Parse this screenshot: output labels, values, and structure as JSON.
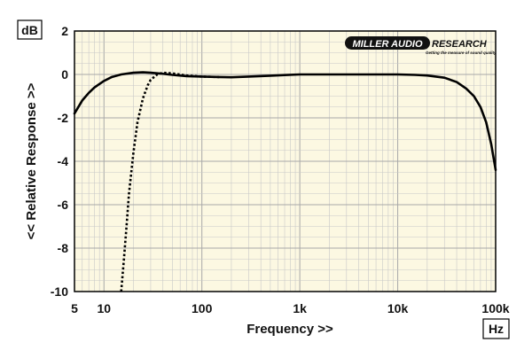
{
  "chart_data": {
    "type": "line",
    "title": "",
    "xlabel": "Frequency >>",
    "ylabel": "<< Relative Response >>",
    "y_unit": "dB",
    "x_unit": "Hz",
    "x_scale": "log",
    "xlim": [
      5,
      100000
    ],
    "ylim": [
      -10,
      2
    ],
    "x_ticks": [
      5,
      10,
      100,
      1000,
      10000,
      100000
    ],
    "x_tick_labels": [
      "5",
      "10",
      "100",
      "1k",
      "10k",
      "100k"
    ],
    "y_ticks": [
      2,
      0,
      -2,
      -4,
      -6,
      -8,
      -10
    ],
    "y_tick_labels": [
      "2",
      "0",
      "-2",
      "-4",
      "-6",
      "-8",
      "-10"
    ],
    "grid": true,
    "background_color": "#fcf8e2",
    "grid_color": "#c8c8c8",
    "series": [
      {
        "style": "solid",
        "color": "#000000",
        "points": [
          [
            5,
            -1.8
          ],
          [
            6,
            -1.2
          ],
          [
            7,
            -0.85
          ],
          [
            8,
            -0.6
          ],
          [
            10,
            -0.3
          ],
          [
            12,
            -0.12
          ],
          [
            15,
            0.0
          ],
          [
            20,
            0.08
          ],
          [
            25,
            0.1
          ],
          [
            30,
            0.08
          ],
          [
            40,
            0.03
          ],
          [
            50,
            -0.02
          ],
          [
            70,
            -0.08
          ],
          [
            100,
            -0.1
          ],
          [
            150,
            -0.12
          ],
          [
            200,
            -0.13
          ],
          [
            300,
            -0.1
          ],
          [
            500,
            -0.06
          ],
          [
            700,
            -0.03
          ],
          [
            1000,
            0.0
          ],
          [
            2000,
            0.0
          ],
          [
            5000,
            0.0
          ],
          [
            10000,
            0.0
          ],
          [
            15000,
            -0.02
          ],
          [
            20000,
            -0.05
          ],
          [
            30000,
            -0.15
          ],
          [
            40000,
            -0.35
          ],
          [
            50000,
            -0.65
          ],
          [
            60000,
            -1.0
          ],
          [
            70000,
            -1.5
          ],
          [
            80000,
            -2.2
          ],
          [
            90000,
            -3.2
          ],
          [
            100000,
            -4.4
          ]
        ]
      },
      {
        "style": "dotted",
        "color": "#000000",
        "points": [
          [
            15,
            -10
          ],
          [
            16,
            -8.5
          ],
          [
            17,
            -7.0
          ],
          [
            18,
            -5.5
          ],
          [
            20,
            -3.6
          ],
          [
            22,
            -2.2
          ],
          [
            25,
            -1.1
          ],
          [
            28,
            -0.5
          ],
          [
            30,
            -0.25
          ],
          [
            35,
            0.0
          ],
          [
            40,
            0.08
          ],
          [
            50,
            0.05
          ],
          [
            70,
            -0.05
          ],
          [
            100,
            -0.1
          ],
          [
            150,
            -0.12
          ]
        ]
      }
    ]
  },
  "logo": {
    "brand": "MILLER AUDIO",
    "brand2": "RESEARCH",
    "tagline": "Getting the measure of sound quality"
  }
}
